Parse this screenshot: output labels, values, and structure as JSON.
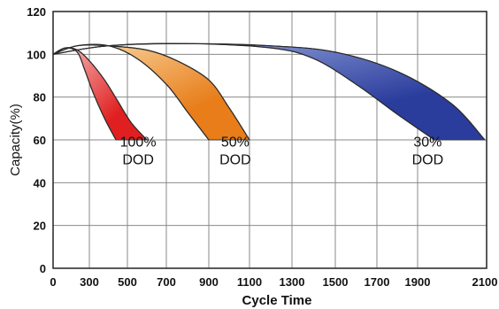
{
  "chart_data": {
    "type": "area",
    "title": "",
    "xlabel": "Cycle Time",
    "ylabel": "Capacity(%)",
    "x_ticks": [
      0,
      300,
      500,
      700,
      900,
      1100,
      1300,
      1500,
      1700,
      1900,
      2100
    ],
    "y_ticks": [
      0,
      20,
      40,
      60,
      80,
      100,
      120
    ],
    "xlim": [
      0,
      2100
    ],
    "ylim": [
      0,
      120
    ],
    "grid": true,
    "series": [
      {
        "name_lines": [
          "100%",
          "DOD"
        ],
        "color": "#e02020",
        "highlight": "#f8c0c0",
        "upper": [
          [
            0,
            100
          ],
          [
            100,
            103
          ],
          [
            200,
            102
          ],
          [
            300,
            97
          ],
          [
            380,
            88
          ],
          [
            450,
            78
          ],
          [
            520,
            68
          ],
          [
            600,
            60
          ]
        ],
        "lower": [
          [
            0,
            100
          ],
          [
            100,
            103
          ],
          [
            200,
            101
          ],
          [
            260,
            93
          ],
          [
            320,
            82
          ],
          [
            380,
            70
          ],
          [
            440,
            60
          ]
        ]
      },
      {
        "name_lines": [
          "50%",
          "DOD"
        ],
        "color": "#e87d1a",
        "highlight": "#fbe0b0",
        "upper": [
          [
            0,
            100
          ],
          [
            200,
            104
          ],
          [
            400,
            104
          ],
          [
            600,
            102
          ],
          [
            750,
            97
          ],
          [
            900,
            88
          ],
          [
            1000,
            75
          ],
          [
            1100,
            60
          ]
        ],
        "lower": [
          [
            0,
            100
          ],
          [
            200,
            104
          ],
          [
            400,
            104
          ],
          [
            550,
            98
          ],
          [
            700,
            86
          ],
          [
            800,
            73
          ],
          [
            900,
            60
          ]
        ]
      },
      {
        "name_lines": [
          "30%",
          "DOD"
        ],
        "color": "#2a3c9c",
        "highlight": "#a9b8e8",
        "upper": [
          [
            0,
            100
          ],
          [
            400,
            104
          ],
          [
            800,
            105
          ],
          [
            1200,
            104
          ],
          [
            1500,
            101
          ],
          [
            1800,
            92
          ],
          [
            2000,
            77
          ],
          [
            2100,
            60
          ]
        ],
        "lower": [
          [
            0,
            100
          ],
          [
            400,
            104
          ],
          [
            800,
            105
          ],
          [
            1200,
            103
          ],
          [
            1400,
            98
          ],
          [
            1600,
            86
          ],
          [
            1800,
            72
          ],
          [
            1950,
            60
          ]
        ]
      }
    ],
    "labels": [
      {
        "series": 0,
        "text_lines": [
          "100%",
          "DOD"
        ],
        "anchor_x": 555,
        "anchor_y": 57
      },
      {
        "series": 1,
        "text_lines": [
          "50%",
          "DOD"
        ],
        "anchor_x": 1030,
        "anchor_y": 57
      },
      {
        "series": 2,
        "text_lines": [
          "30%",
          "DOD"
        ],
        "anchor_x": 1930,
        "anchor_y": 57
      }
    ]
  }
}
